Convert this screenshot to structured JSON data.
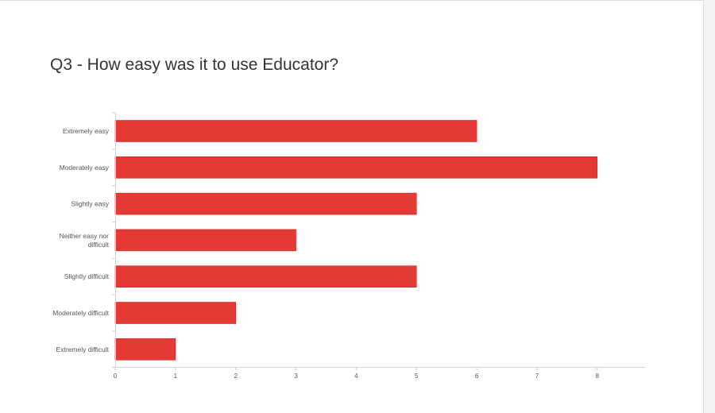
{
  "title": "Q3 - How easy was it to use Educator?",
  "chart_data": {
    "type": "bar",
    "orientation": "horizontal",
    "title": "Q3 - How easy was it to use Educator?",
    "categories": [
      "Extremely easy",
      "Moderately easy",
      "Slightly easy",
      "Neither easy nor difficult",
      "Slightly difficult",
      "Moderately difficult",
      "Extremely difficult"
    ],
    "values": [
      6,
      8,
      5,
      3,
      5,
      2,
      1
    ],
    "xlim": [
      0,
      8.8
    ],
    "xticks": [
      0,
      1,
      2,
      3,
      4,
      5,
      6,
      7,
      8
    ],
    "grid": false,
    "legend": "none",
    "bar_color": "#e53935"
  }
}
